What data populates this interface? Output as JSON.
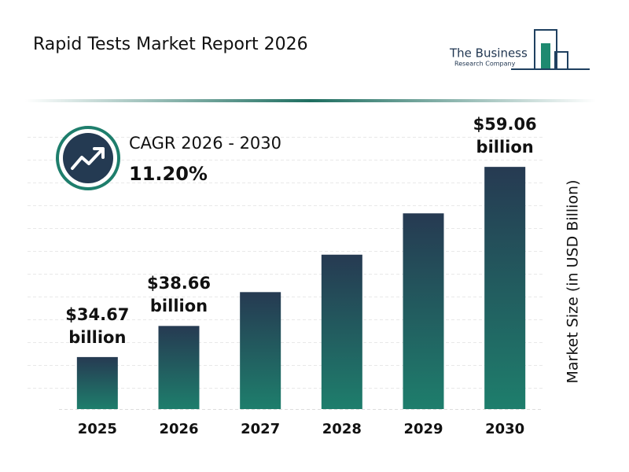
{
  "chart_data": {
    "type": "bar",
    "title": "Rapid Tests Market Report 2026",
    "logo": {
      "line1": "The Business",
      "line2": "Research Company"
    },
    "cagr_label": "CAGR 2026 - 2030",
    "cagr_value": "11.20%",
    "y_axis_label": "Market Size (in USD Billion)",
    "categories": [
      "2025",
      "2026",
      "2027",
      "2028",
      "2029",
      "2030"
    ],
    "values": [
      34.67,
      38.66,
      43.0,
      47.8,
      53.1,
      59.06
    ],
    "value_labels": [
      "$34.67 billion",
      "$38.66 billion",
      null,
      null,
      null,
      "$59.06 billion"
    ],
    "gradient": [
      "#263a52",
      "#1e7e6c"
    ],
    "ylim": [
      28,
      62
    ]
  }
}
